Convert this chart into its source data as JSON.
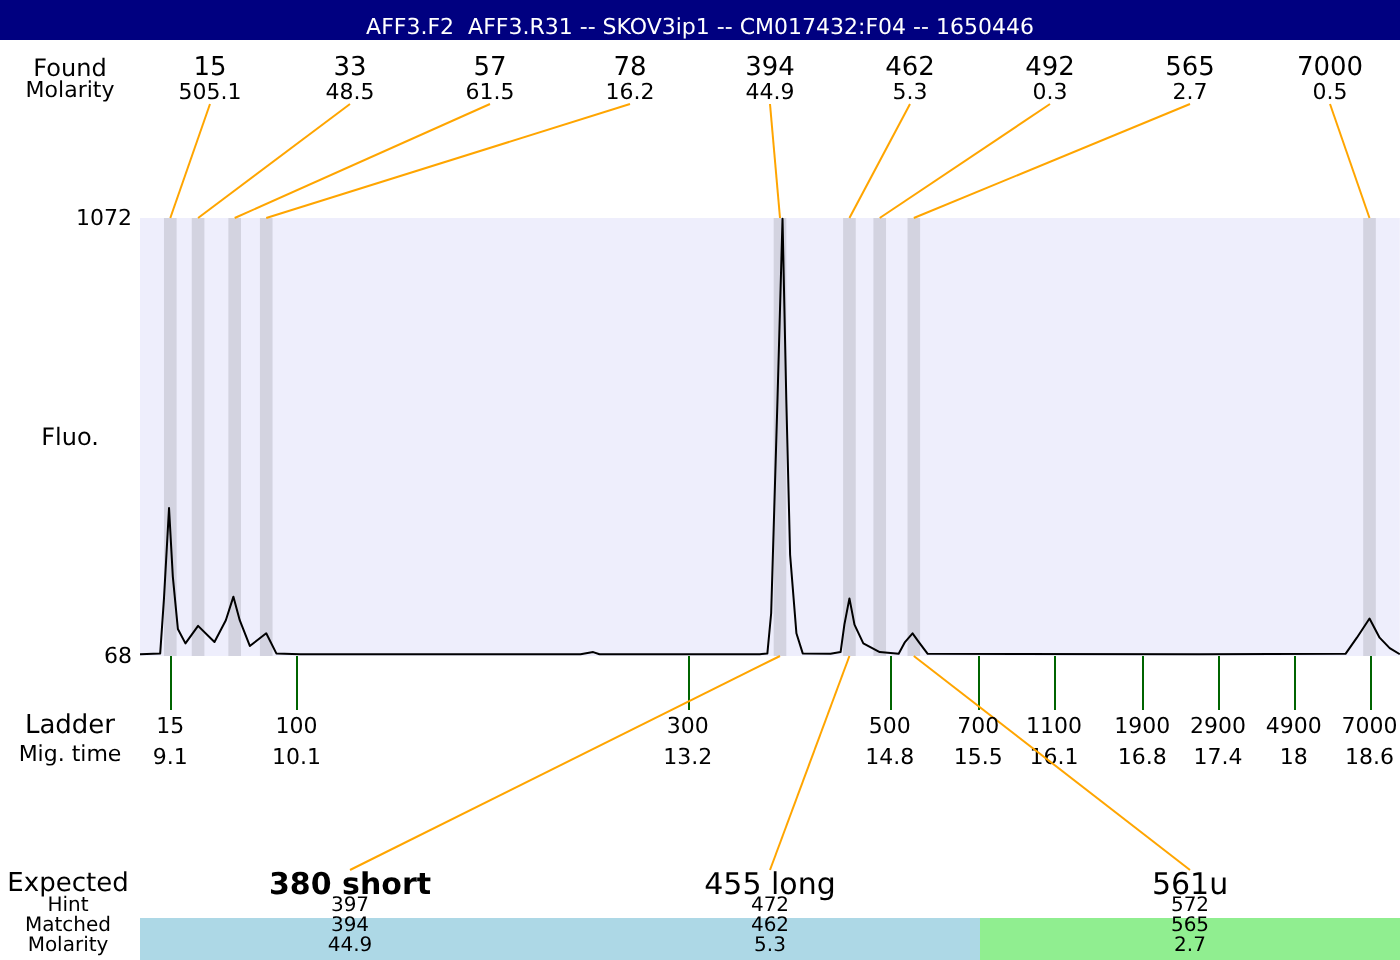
{
  "chart_data": {
    "type": "line",
    "title": "AFF3.F2  AFF3.R31 -- SKOV3ip1 -- CM017432:F04 -- 1650446",
    "ylabel": "Fluo.",
    "xlabel": "Mig. time",
    "xlim": [
      8.86,
      18.84
    ],
    "xticks": [
      9.1,
      10.1,
      13.2,
      14.8,
      15.5,
      16.1,
      16.8,
      17.4,
      18,
      18.6
    ],
    "ylim": [
      68,
      1072
    ],
    "yticks": [
      68,
      {
        "value": 1072,
        "label": "1072"
      }
    ],
    "grid": false,
    "marker": "none",
    "series": [
      {
        "color": "#000000",
        "x": [
          8.86,
          9.02,
          9.05,
          9.09,
          9.12,
          9.16,
          9.22,
          9.32,
          9.45,
          9.54,
          9.6,
          9.65,
          9.73,
          9.86,
          9.94,
          10.13,
          12.35,
          12.45,
          12.5,
          13.77,
          13.83,
          13.86,
          13.91,
          13.95,
          13.98,
          14.01,
          14.06,
          14.11,
          14.33,
          14.41,
          14.44,
          14.48,
          14.52,
          14.59,
          14.72,
          14.87,
          14.92,
          14.98,
          15.03,
          15.1,
          17.25,
          18.41,
          18.5,
          18.6,
          18.68,
          18.76,
          18.84
        ],
        "values": [
          72,
          74,
          200,
          407,
          250,
          130,
          97,
          137,
          100,
          150,
          204,
          150,
          91,
          120,
          74,
          72,
          72,
          77,
          72,
          72,
          74,
          166,
          655,
          1070,
          655,
          300,
          120,
          74,
          73,
          77,
          140,
          200,
          140,
          97,
          77,
          73,
          100,
          120,
          100,
          73,
          72,
          73,
          110,
          154,
          110,
          86,
          72
        ]
      }
    ],
    "bands": [
      {
        "axis": "x",
        "from": 9.05,
        "to": 9.15,
        "color": "#d3d3e0"
      },
      {
        "axis": "x",
        "from": 9.27,
        "to": 9.37,
        "color": "#d3d3e0"
      },
      {
        "axis": "x",
        "from": 9.56,
        "to": 9.66,
        "color": "#d3d3e0"
      },
      {
        "axis": "x",
        "from": 9.81,
        "to": 9.91,
        "color": "#d3d3e0"
      },
      {
        "axis": "x",
        "from": 13.88,
        "to": 13.98,
        "color": "#d3d3e0"
      },
      {
        "axis": "x",
        "from": 14.43,
        "to": 14.53,
        "color": "#d3d3e0"
      },
      {
        "axis": "x",
        "from": 14.67,
        "to": 14.77,
        "color": "#d3d3e0"
      },
      {
        "axis": "x",
        "from": 14.94,
        "to": 15.04,
        "color": "#d3d3e0"
      },
      {
        "axis": "x",
        "from": 18.55,
        "to": 18.65,
        "color": "#d3d3e0"
      }
    ],
    "annotations": [
      "Found",
      "Molarity",
      {
        "text": "15",
        "x": 9.1,
        "y": 1072
      },
      "505.1",
      {
        "text": "33",
        "x": 9.32,
        "y": 1072
      },
      "48.5",
      {
        "text": "57",
        "x": 9.61,
        "y": 1072
      },
      "61.5",
      {
        "text": "78",
        "x": 9.86,
        "y": 1072
      },
      "16.2",
      {
        "text": "394",
        "x": 13.93,
        "y": 1072
      },
      "44.9",
      {
        "text": "462",
        "x": 14.48,
        "y": 1072
      },
      "5.3",
      {
        "text": "492",
        "x": 14.72,
        "y": 1072
      },
      "0.3",
      {
        "text": "565",
        "x": 14.99,
        "y": 1072
      },
      "2.7",
      {
        "text": "7000",
        "x": 18.6,
        "y": 1072
      },
      "0.5",
      "Ladder",
      {
        "text": "15",
        "x": 9.1,
        "y": 68
      },
      {
        "text": "100",
        "x": 10.1,
        "y": 68
      },
      {
        "text": "300",
        "x": 13.2,
        "y": 68
      },
      {
        "text": "500",
        "x": 14.8,
        "y": 68
      },
      {
        "text": "700",
        "x": 15.5,
        "y": 68
      },
      {
        "text": "1100",
        "x": 16.1,
        "y": 68
      },
      {
        "text": "1900",
        "x": 16.8,
        "y": 68
      },
      {
        "text": "2900",
        "x": 17.4,
        "y": 68
      },
      {
        "text": "4900",
        "x": 18,
        "y": 68
      },
      {
        "text": "7000",
        "x": 18.6,
        "y": 68
      },
      "Expected",
      "Hint",
      "Matched",
      "Molarity",
      {
        "text": "380 short",
        "x": 13.93,
        "y": 68
      },
      "397",
      "394",
      "44.9",
      {
        "text": "455 long",
        "x": 14.48,
        "y": 68
      },
      "472",
      "462",
      "5.3",
      {
        "text": "561u",
        "x": 14.99,
        "y": 68
      },
      "572",
      "565",
      "2.7"
    ]
  }
}
